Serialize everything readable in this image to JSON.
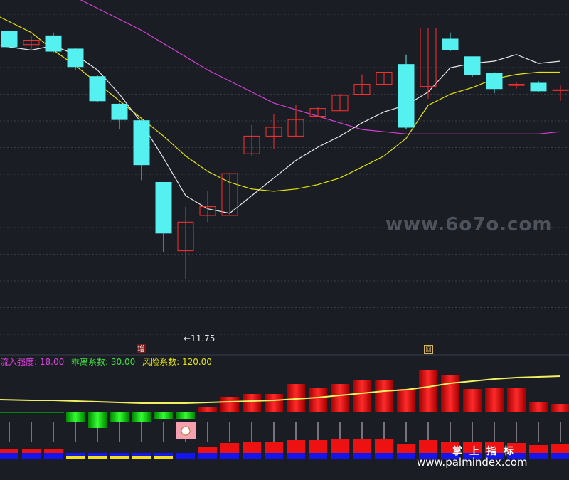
{
  "colors": {
    "background": "#1b1d24",
    "grid": "#3a3f4c",
    "candle_up": "#ff3030",
    "candle_down": "#55f0f0",
    "ma_white": "#e8e8e8",
    "ma_yellow": "#e6e600",
    "ma_magenta": "#d43fd4",
    "ma_green": "#30c030",
    "bar_red": "#ee1111",
    "bar_green": "#11cc11",
    "bar_blue": "#1515ee",
    "bar_yellow": "#f0e020",
    "signal_pink": "#f4a0b0"
  },
  "main_chart": {
    "low_annotation": "←11.75",
    "low_value": 11.75,
    "badge_zeng": "增",
    "box_icon": "回",
    "candles": [
      {
        "o": 53.5,
        "c": 46.5,
        "h": 53.5,
        "l": 46.5
      },
      {
        "o": 47.5,
        "c": 49.5,
        "h": 51.5,
        "l": 45.5
      },
      {
        "o": 51.5,
        "c": 44.5,
        "h": 53,
        "l": 44
      },
      {
        "o": 45.5,
        "c": 37.5,
        "h": 46,
        "l": 36
      },
      {
        "o": 33,
        "c": 22,
        "h": 33.5,
        "l": 21.5
      },
      {
        "o": 20.5,
        "c": 13.5,
        "h": 21,
        "l": 9
      },
      {
        "o": 13,
        "c": -7,
        "h": 13.5,
        "l": -14
      },
      {
        "o": -15,
        "c": -38,
        "h": -15,
        "l": -46.5
      },
      {
        "o": -46,
        "c": -33,
        "h": -26,
        "l": -59
      },
      {
        "o": -30,
        "c": -26,
        "h": -19,
        "l": -33
      },
      {
        "o": -30,
        "c": -11,
        "h": -11,
        "l": -30
      },
      {
        "o": -2,
        "c": 6,
        "h": 11,
        "l": -3
      },
      {
        "o": 6,
        "c": 10,
        "h": 16,
        "l": 0
      },
      {
        "o": 6,
        "c": 13.5,
        "h": 20,
        "l": 6
      },
      {
        "o": 15,
        "c": 18.5,
        "h": 19,
        "l": 15
      },
      {
        "o": 17.5,
        "c": 24.5,
        "h": 25,
        "l": 17.5
      },
      {
        "o": 25,
        "c": 29.5,
        "h": 34,
        "l": 25
      },
      {
        "o": 29.5,
        "c": 35,
        "h": 35,
        "l": 29.5
      },
      {
        "o": 38.5,
        "c": 10,
        "h": 43,
        "l": 9
      },
      {
        "o": 28.5,
        "c": 55,
        "h": 55,
        "l": 23
      },
      {
        "o": 50,
        "c": 45,
        "h": 53,
        "l": 44.5
      },
      {
        "o": 42,
        "c": 34,
        "h": 42,
        "l": 33
      },
      {
        "o": 34.5,
        "c": 27.5,
        "h": 35,
        "l": 25.5
      },
      {
        "o": 29,
        "c": 29.5,
        "h": 30.5,
        "l": 27.5
      },
      {
        "o": 30,
        "c": 26.5,
        "h": 31,
        "l": 26
      },
      {
        "o": 27,
        "c": 27,
        "h": 29,
        "l": 22
      }
    ],
    "ma_white": [
      47,
      45,
      47,
      43,
      36,
      25,
      12,
      -4,
      -21,
      -27,
      -29,
      -21,
      -13,
      -5,
      1,
      6,
      12,
      17,
      20,
      26,
      37,
      39,
      40,
      43,
      39,
      40
    ],
    "ma_yellow": [
      60,
      53,
      45,
      38,
      30,
      22,
      14,
      6,
      -3,
      -10,
      -15,
      -18,
      -19,
      -18,
      -16,
      -13,
      -8,
      -3,
      5,
      20,
      25,
      28,
      32,
      34,
      35,
      35
    ],
    "ma_magenta": [
      80,
      77,
      73,
      69,
      64,
      59,
      54,
      48,
      42,
      36,
      31,
      26,
      21,
      18,
      15,
      12,
      9,
      8,
      7,
      7,
      7,
      7,
      7,
      7,
      7,
      8
    ],
    "ma_green": [
      123,
      121,
      119,
      117,
      115,
      113,
      111,
      109,
      107,
      105,
      103,
      101,
      99,
      97,
      95,
      93,
      91,
      89,
      87,
      86,
      85,
      84,
      82,
      80,
      78,
      76
    ]
  },
  "indicator": {
    "legend": [
      {
        "label": "流入强度: 18.00",
        "color": "#e040e0"
      },
      {
        "label": "乖离系数: 30.00",
        "color": "#40e040"
      },
      {
        "label": "风险系数: 120.00",
        "color": "#e6e600"
      }
    ],
    "bars": [
      0,
      0,
      0,
      -1,
      -1,
      -1,
      -1,
      -1,
      -1,
      1,
      1,
      1,
      1,
      1,
      1,
      1,
      1,
      1,
      1,
      1,
      1,
      1,
      1,
      1,
      1,
      1
    ],
    "bar_heights": [
      1,
      1,
      1,
      14,
      22,
      14,
      14,
      9,
      9,
      7,
      22,
      26,
      26,
      40,
      34,
      40,
      46,
      46,
      33,
      60,
      52,
      33,
      34,
      34,
      14,
      12
    ],
    "line": [
      28,
      27,
      27,
      26,
      25,
      24,
      23,
      23,
      23,
      24,
      25,
      26,
      27,
      29,
      31,
      34,
      37,
      40,
      42,
      46,
      51,
      54,
      57,
      59,
      60,
      61
    ],
    "signal_candle_index": 8,
    "footer_red_heights": [
      5,
      6,
      6,
      0,
      0,
      0,
      0,
      0,
      0,
      9,
      14,
      16,
      16,
      18,
      18,
      19,
      20,
      20,
      13,
      18,
      15,
      15,
      16,
      14,
      11,
      13
    ],
    "footer_yellow": [
      3,
      4,
      5,
      6,
      7
    ]
  },
  "watermarks": {
    "site_6070": "www.6o7o.com",
    "cn_label": "掌上指标",
    "palmindex": "www.palmindex.com"
  }
}
